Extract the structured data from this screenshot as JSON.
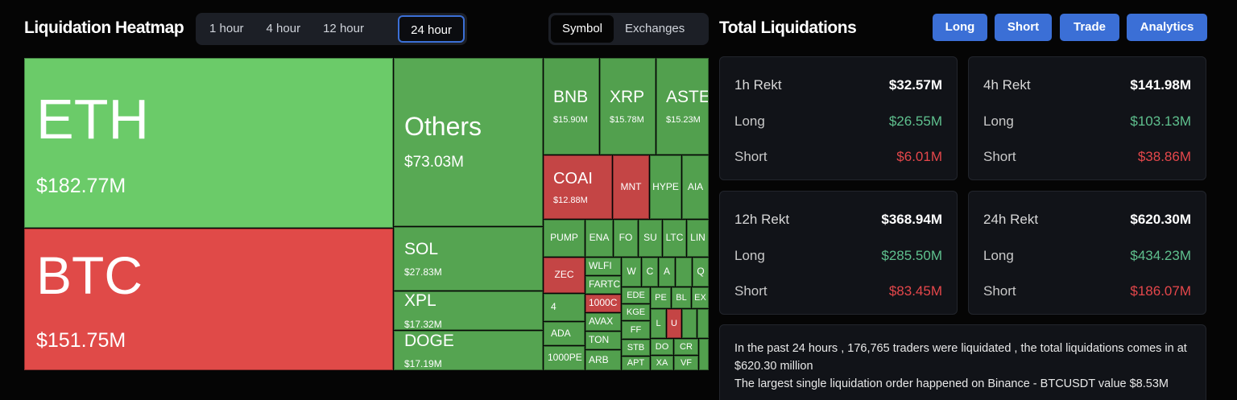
{
  "header": {
    "title": "Liquidation Heatmap",
    "tabs": [
      "1 hour",
      "4 hour",
      "12 hour",
      "24 hour"
    ],
    "active_tab": 3,
    "views": [
      "Symbol",
      "Exchanges"
    ],
    "active_view": 0
  },
  "heatmap": {
    "tiles": [
      {
        "label": "ETH",
        "value": "$182.77M",
        "color": "#6bcb69"
      },
      {
        "label": "BTC",
        "value": "$151.75M",
        "color": "#e04a48"
      },
      {
        "label": "Others",
        "value": "$73.03M",
        "color": "#58a954"
      },
      {
        "label": "SOL",
        "value": "$27.83M",
        "color": "#55a451"
      },
      {
        "label": "XPL",
        "value": "$17.32M",
        "color": "#55a451"
      },
      {
        "label": "DOGE",
        "value": "$17.19M",
        "color": "#55a451"
      },
      {
        "label": "BNB",
        "value": "$15.90M",
        "color": "#52a04e"
      },
      {
        "label": "XRP",
        "value": "$15.78M",
        "color": "#52a04e"
      },
      {
        "label": "ASTER",
        "value": "$15.23M",
        "color": "#52a04e"
      },
      {
        "label": "COAI",
        "value": "$12.88M",
        "color": "#c44545"
      },
      {
        "label": "MNT",
        "color": "#c44545"
      },
      {
        "label": "HYPE",
        "color": "#52a04e"
      },
      {
        "label": "AIA",
        "color": "#52a04e"
      },
      {
        "label": "PUMP",
        "color": "#52a04e"
      },
      {
        "label": "ENA",
        "color": "#52a04e"
      },
      {
        "label": "FO",
        "color": "#52a04e"
      },
      {
        "label": "SU",
        "color": "#52a04e"
      },
      {
        "label": "LTC",
        "color": "#52a04e"
      },
      {
        "label": "LIN",
        "color": "#52a04e"
      },
      {
        "label": "ZEC",
        "color": "#c44545"
      },
      {
        "label": "4",
        "color": "#52a04e"
      },
      {
        "label": "ADA",
        "color": "#52a04e"
      },
      {
        "label": "1000PE",
        "color": "#52a04e"
      },
      {
        "label": "WLFI",
        "color": "#52a04e"
      },
      {
        "label": "FARTC",
        "color": "#52a04e"
      },
      {
        "label": "1000C",
        "color": "#c44545"
      },
      {
        "label": "AVAX",
        "color": "#52a04e"
      },
      {
        "label": "TON",
        "color": "#52a04e"
      },
      {
        "label": "ARB",
        "color": "#52a04e"
      },
      {
        "label": "W",
        "color": "#52a04e"
      },
      {
        "label": "C",
        "color": "#52a04e"
      },
      {
        "label": "A",
        "color": "#52a04e"
      },
      {
        "label": "Q",
        "color": "#52a04e"
      },
      {
        "label": "EDE",
        "color": "#52a04e"
      },
      {
        "label": "KGE",
        "color": "#52a04e"
      },
      {
        "label": "FF",
        "color": "#52a04e"
      },
      {
        "label": "STB",
        "color": "#52a04e"
      },
      {
        "label": "APT",
        "color": "#52a04e"
      },
      {
        "label": "PE",
        "color": "#52a04e"
      },
      {
        "label": "BL",
        "color": "#52a04e"
      },
      {
        "label": "EX",
        "color": "#52a04e"
      },
      {
        "label": "L",
        "color": "#52a04e"
      },
      {
        "label": "U",
        "color": "#c44545"
      },
      {
        "label": "DO",
        "color": "#52a04e"
      },
      {
        "label": "CR",
        "color": "#52a04e"
      },
      {
        "label": "XA",
        "color": "#52a04e"
      },
      {
        "label": "VF",
        "color": "#52a04e"
      }
    ]
  },
  "panel": {
    "title": "Total Liquidations",
    "buttons": [
      "Long",
      "Short",
      "Trade",
      "Analytics"
    ],
    "cards": [
      {
        "title": "1h Rekt",
        "total": "$32.57M",
        "long_label": "Long",
        "long": "$26.55M",
        "short_label": "Short",
        "short": "$6.01M"
      },
      {
        "title": "4h Rekt",
        "total": "$141.98M",
        "long_label": "Long",
        "long": "$103.13M",
        "short_label": "Short",
        "short": "$38.86M"
      },
      {
        "title": "12h Rekt",
        "total": "$368.94M",
        "long_label": "Long",
        "long": "$285.50M",
        "short_label": "Short",
        "short": "$83.45M"
      },
      {
        "title": "24h Rekt",
        "total": "$620.30M",
        "long_label": "Long",
        "long": "$434.23M",
        "short_label": "Short",
        "short": "$186.07M"
      }
    ],
    "summary": [
      "In the past 24 hours , 176,765 traders were liquidated , the total liquidations comes in at $620.30 million",
      "The largest single liquidation order happened on Binance - BTCUSDT value $8.53M"
    ]
  }
}
